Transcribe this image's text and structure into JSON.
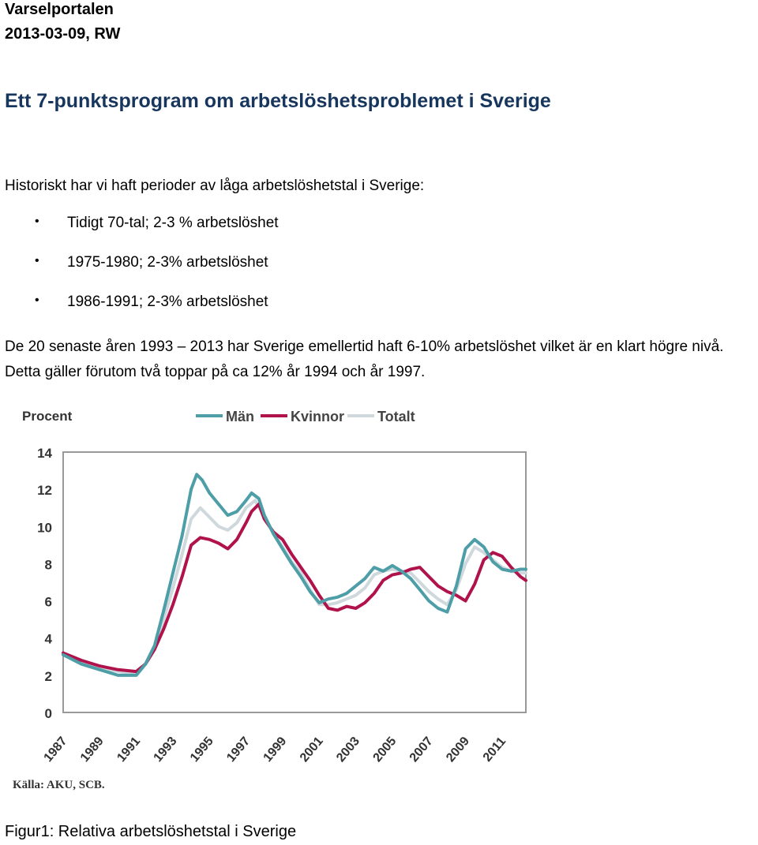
{
  "header": {
    "line1": "Varselportalen",
    "line2": "2013-03-09, RW"
  },
  "title": "Ett 7-punktsprogram om arbetslöshetsproblemet i Sverige",
  "intro": "Historiskt har vi haft perioder av låga arbetslöshetstal i Sverige:",
  "bullets": [
    "Tidigt 70-tal; 2-3 % arbetslöshet",
    "1975-1980; 2-3% arbetslöshet",
    "1986-1991; 2-3% arbetslöshet"
  ],
  "paragraph": "De 20 senaste åren 1993 – 2013 har Sverige emellertid haft 6-10% arbetslöshet vilket är en klart högre nivå. Detta gäller förutom två toppar på ca 12% år 1994 och år 1997.",
  "chart_data": {
    "type": "line",
    "ylabel": "Procent",
    "ylim": [
      0,
      14
    ],
    "yticks": [
      0,
      2,
      4,
      6,
      8,
      10,
      12,
      14
    ],
    "xlim": [
      1987,
      2012.3
    ],
    "xticks": [
      "1987",
      "1989",
      "1991",
      "1993",
      "1995",
      "1997",
      "1999",
      "2001",
      "2003",
      "2005",
      "2007",
      "2009",
      "2011"
    ],
    "source": "Källa: AKU, SCB.",
    "legend_position": "top",
    "series": [
      {
        "name": "Män",
        "color": "#4e9ea8",
        "x": [
          1987,
          1988,
          1989,
          1990,
          1991,
          1991.5,
          1992,
          1992.5,
          1993,
          1993.5,
          1994,
          1994.3,
          1994.6,
          1995,
          1995.5,
          1996,
          1996.5,
          1997,
          1997.3,
          1997.7,
          1998,
          1998.5,
          1999,
          1999.5,
          2000,
          2000.5,
          2001,
          2001.5,
          2002,
          2002.5,
          2003,
          2003.5,
          2004,
          2004.5,
          2005,
          2005.5,
          2006,
          2006.5,
          2007,
          2007.5,
          2008,
          2008.5,
          2009,
          2009.5,
          2010,
          2010.5,
          2011,
          2011.5,
          2012,
          2012.3
        ],
        "y": [
          3.1,
          2.6,
          2.3,
          2.0,
          2.0,
          2.6,
          3.6,
          5.5,
          7.5,
          9.5,
          12.0,
          12.8,
          12.5,
          11.8,
          11.2,
          10.6,
          10.8,
          11.4,
          11.8,
          11.5,
          10.6,
          9.6,
          8.8,
          8.0,
          7.3,
          6.5,
          5.9,
          6.1,
          6.2,
          6.4,
          6.8,
          7.2,
          7.8,
          7.6,
          7.9,
          7.6,
          7.2,
          6.6,
          6.0,
          5.6,
          5.4,
          6.8,
          8.8,
          9.3,
          8.9,
          8.1,
          7.7,
          7.6,
          7.7,
          7.7
        ]
      },
      {
        "name": "Kvinnor",
        "color": "#b0134b",
        "x": [
          1987,
          1988,
          1989,
          1990,
          1991,
          1991.5,
          1992,
          1992.5,
          1993,
          1993.5,
          1994,
          1994.5,
          1995,
          1995.5,
          1996,
          1996.5,
          1997,
          1997.3,
          1997.7,
          1998,
          1998.5,
          1999,
          1999.5,
          2000,
          2000.5,
          2001,
          2001.5,
          2002,
          2002.5,
          2003,
          2003.5,
          2004,
          2004.5,
          2005,
          2005.5,
          2006,
          2006.5,
          2007,
          2007.5,
          2008,
          2008.5,
          2009,
          2009.5,
          2010,
          2010.5,
          2011,
          2011.5,
          2012,
          2012.3
        ],
        "y": [
          3.2,
          2.8,
          2.5,
          2.3,
          2.2,
          2.6,
          3.4,
          4.5,
          5.8,
          7.3,
          9.0,
          9.4,
          9.3,
          9.1,
          8.8,
          9.3,
          10.2,
          10.8,
          11.2,
          10.4,
          9.7,
          9.3,
          8.5,
          7.8,
          7.1,
          6.3,
          5.6,
          5.5,
          5.7,
          5.6,
          5.9,
          6.4,
          7.1,
          7.4,
          7.5,
          7.7,
          7.8,
          7.3,
          6.8,
          6.5,
          6.3,
          6.0,
          6.9,
          8.2,
          8.6,
          8.4,
          7.8,
          7.3,
          7.1
        ]
      },
      {
        "name": "Totalt",
        "color": "#cfd8dc",
        "x": [
          1987,
          1988,
          1989,
          1990,
          1991,
          1991.5,
          1992,
          1992.5,
          1993,
          1993.5,
          1994,
          1994.5,
          1995,
          1995.5,
          1996,
          1996.5,
          1997,
          1997.5,
          1998,
          1998.5,
          1999,
          1999.5,
          2000,
          2000.5,
          2001,
          2001.5,
          2002,
          2002.5,
          2003,
          2003.5,
          2004,
          2004.5,
          2005,
          2005.5,
          2006,
          2006.5,
          2007,
          2007.5,
          2008,
          2008.5,
          2009,
          2009.5,
          2010,
          2010.5,
          2011,
          2011.5,
          2012,
          2012.3
        ],
        "y": [
          3.1,
          2.7,
          2.4,
          2.2,
          2.1,
          2.6,
          3.5,
          5.0,
          6.7,
          8.5,
          10.4,
          11.0,
          10.5,
          10.0,
          9.8,
          10.2,
          11.0,
          11.4,
          10.5,
          9.6,
          8.9,
          8.1,
          7.5,
          6.6,
          5.8,
          5.8,
          5.9,
          6.1,
          6.3,
          6.7,
          7.4,
          7.6,
          7.7,
          7.6,
          7.5,
          7.0,
          6.5,
          6.1,
          5.8,
          6.6,
          8.0,
          8.9,
          8.6,
          8.2,
          7.8,
          7.6,
          7.5,
          7.5
        ]
      }
    ]
  },
  "caption": "Figur1: Relativa arbetslöshetstal i Sverige"
}
